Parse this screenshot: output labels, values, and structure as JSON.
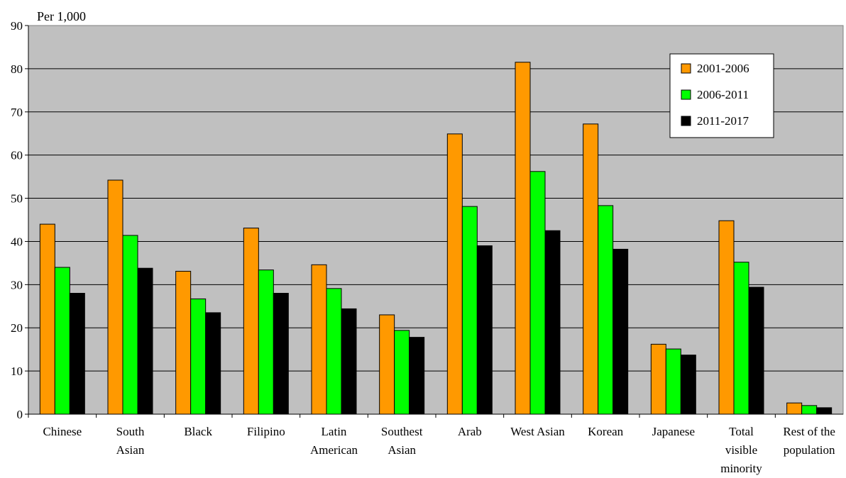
{
  "chart_data": {
    "type": "bar",
    "unit_label": "Per 1,000",
    "categories": [
      [
        "Chinese"
      ],
      [
        "South",
        "Asian"
      ],
      [
        "Black"
      ],
      [
        "Filipino"
      ],
      [
        "Latin",
        "American"
      ],
      [
        "Southest",
        "Asian"
      ],
      [
        "Arab"
      ],
      [
        "West Asian"
      ],
      [
        "Korean"
      ],
      [
        "Japanese"
      ],
      [
        "Total",
        "visible",
        "minority"
      ],
      [
        "Rest of the",
        "population"
      ]
    ],
    "series": [
      {
        "name": "2001-2006",
        "color": "#FF9900",
        "values": [
          44.0,
          54.2,
          33.1,
          43.1,
          34.6,
          23.0,
          64.9,
          81.5,
          67.2,
          16.2,
          44.8,
          2.6
        ]
      },
      {
        "name": "2006-2011",
        "color": "#00FF00",
        "values": [
          34.0,
          41.4,
          26.7,
          33.4,
          29.1,
          19.4,
          48.1,
          56.2,
          48.3,
          15.1,
          35.2,
          2.0
        ]
      },
      {
        "name": "2011-2017",
        "color": "#000000",
        "values": [
          28.0,
          33.8,
          23.5,
          28.0,
          24.4,
          17.8,
          39.0,
          42.5,
          38.2,
          13.7,
          29.4,
          1.5
        ]
      }
    ],
    "ylim": [
      0,
      90
    ],
    "yticks": [
      0,
      10,
      20,
      30,
      40,
      50,
      60,
      70,
      80,
      90
    ],
    "grid": true,
    "plot_background": "#C0C0C0",
    "legend_position": "top-right"
  }
}
